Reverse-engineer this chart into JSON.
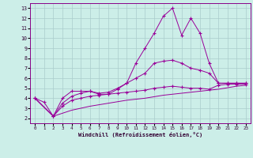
{
  "background_color": "#cceee8",
  "line_color": "#990099",
  "grid_color": "#aacccc",
  "xlabel": "Windchill (Refroidissement éolien,°C)",
  "ylabel_ticks": [
    2,
    3,
    4,
    5,
    6,
    7,
    8,
    9,
    10,
    11,
    12,
    13
  ],
  "xticks": [
    0,
    1,
    2,
    3,
    4,
    5,
    6,
    7,
    8,
    9,
    10,
    11,
    12,
    13,
    14,
    15,
    16,
    17,
    18,
    19,
    20,
    21,
    22,
    23
  ],
  "ylim": [
    1.5,
    13.5
  ],
  "xlim": [
    -0.5,
    23.5
  ],
  "series1_x": [
    0,
    1,
    2,
    3,
    4,
    5,
    6,
    7,
    8,
    9,
    10,
    11,
    12,
    13,
    14,
    15,
    16,
    17,
    18,
    19,
    20,
    21,
    22,
    23
  ],
  "series1_y": [
    4.0,
    3.6,
    2.2,
    4.0,
    4.7,
    4.7,
    4.7,
    4.4,
    4.4,
    4.9,
    5.5,
    7.5,
    9.0,
    10.5,
    12.2,
    13.0,
    10.3,
    12.0,
    10.5,
    7.5,
    5.5,
    5.5,
    5.5,
    5.5
  ],
  "series2_x": [
    0,
    2,
    3,
    4,
    5,
    6,
    7,
    8,
    9,
    10,
    11,
    12,
    13,
    14,
    15,
    16,
    17,
    18,
    19,
    20,
    21,
    22,
    23
  ],
  "series2_y": [
    4.0,
    2.2,
    3.5,
    4.2,
    4.5,
    4.7,
    4.5,
    4.6,
    5.0,
    5.5,
    6.0,
    6.5,
    7.5,
    7.7,
    7.8,
    7.5,
    7.0,
    6.8,
    6.5,
    5.5,
    5.5,
    5.5,
    5.5
  ],
  "series3_x": [
    0,
    2,
    3,
    4,
    5,
    6,
    7,
    8,
    9,
    10,
    11,
    12,
    13,
    14,
    15,
    16,
    17,
    18,
    19,
    20,
    21,
    22,
    23
  ],
  "series3_y": [
    4.0,
    2.2,
    3.2,
    3.8,
    4.0,
    4.2,
    4.3,
    4.4,
    4.5,
    4.6,
    4.7,
    4.8,
    5.0,
    5.1,
    5.2,
    5.1,
    5.0,
    5.0,
    4.9,
    5.3,
    5.4,
    5.4,
    5.4
  ],
  "series4_x": [
    0,
    2,
    4,
    6,
    8,
    10,
    12,
    14,
    16,
    18,
    20,
    22,
    23
  ],
  "series4_y": [
    4.0,
    2.2,
    2.8,
    3.2,
    3.5,
    3.8,
    4.0,
    4.3,
    4.5,
    4.7,
    4.9,
    5.2,
    5.3
  ]
}
